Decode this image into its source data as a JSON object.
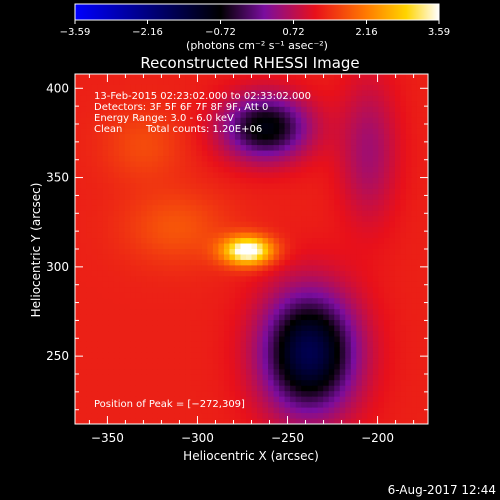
{
  "chart_data": {
    "type": "heatmap",
    "title": "Reconstructed RHESSI Image",
    "xlabel": "Heliocentric X (arcsec)",
    "ylabel": "Heliocentric Y (arcsec)",
    "xlim": [
      -368,
      -172
    ],
    "ylim": [
      212,
      408
    ],
    "xticks": [
      -350,
      -300,
      -250,
      -200
    ],
    "yticks": [
      250,
      300,
      350,
      400
    ],
    "xtick_labels": [
      "−350",
      "−300",
      "−250",
      "−200"
    ],
    "ytick_labels": [
      "250",
      "300",
      "350",
      "400"
    ],
    "colorbar": {
      "ticks": [
        -3.59,
        -2.16,
        -0.72,
        0.72,
        2.16,
        3.59
      ],
      "tick_labels": [
        "−3.59",
        "−2.16",
        "−0.72",
        "0.72",
        "2.16",
        "3.59"
      ],
      "unit_label": "(photons cm⁻² s⁻¹ asec⁻²)",
      "colors": [
        "#0000ff",
        "#000000",
        "#7a0d9e",
        "#e8101a",
        "#ff7a00",
        "#ffd400",
        "#ffffff"
      ]
    },
    "annotations": [
      "13-Feb-2015 02:23:02.000 to 02:33:02.000",
      "Detectors: 3F 5F 6F 7F 8F 9F, Att 0",
      "Energy Range: 3.0 - 6.0 keV",
      "Clean",
      "Total counts: 1.20E+06"
    ],
    "peak_label": "Position of Peak = [−272,309]",
    "peak": [
      -272,
      309
    ],
    "features": [
      {
        "x": -272,
        "y": 309,
        "sx": 14,
        "sy": 8,
        "amp": 2.6
      },
      {
        "x": -312,
        "y": 322,
        "sx": 28,
        "sy": 20,
        "amp": 0.5
      },
      {
        "x": -262,
        "y": 378,
        "sx": 24,
        "sy": 18,
        "amp": -2.2
      },
      {
        "x": -238,
        "y": 252,
        "sx": 26,
        "sy": 34,
        "amp": -2.9
      },
      {
        "x": -205,
        "y": 365,
        "sx": 16,
        "sy": 40,
        "amp": -0.8
      },
      {
        "x": -330,
        "y": 368,
        "sx": 22,
        "sy": 20,
        "amp": 0.4
      }
    ],
    "background_level": 1.3
  },
  "footer": {
    "date": "6-Aug-2017 12:44"
  }
}
